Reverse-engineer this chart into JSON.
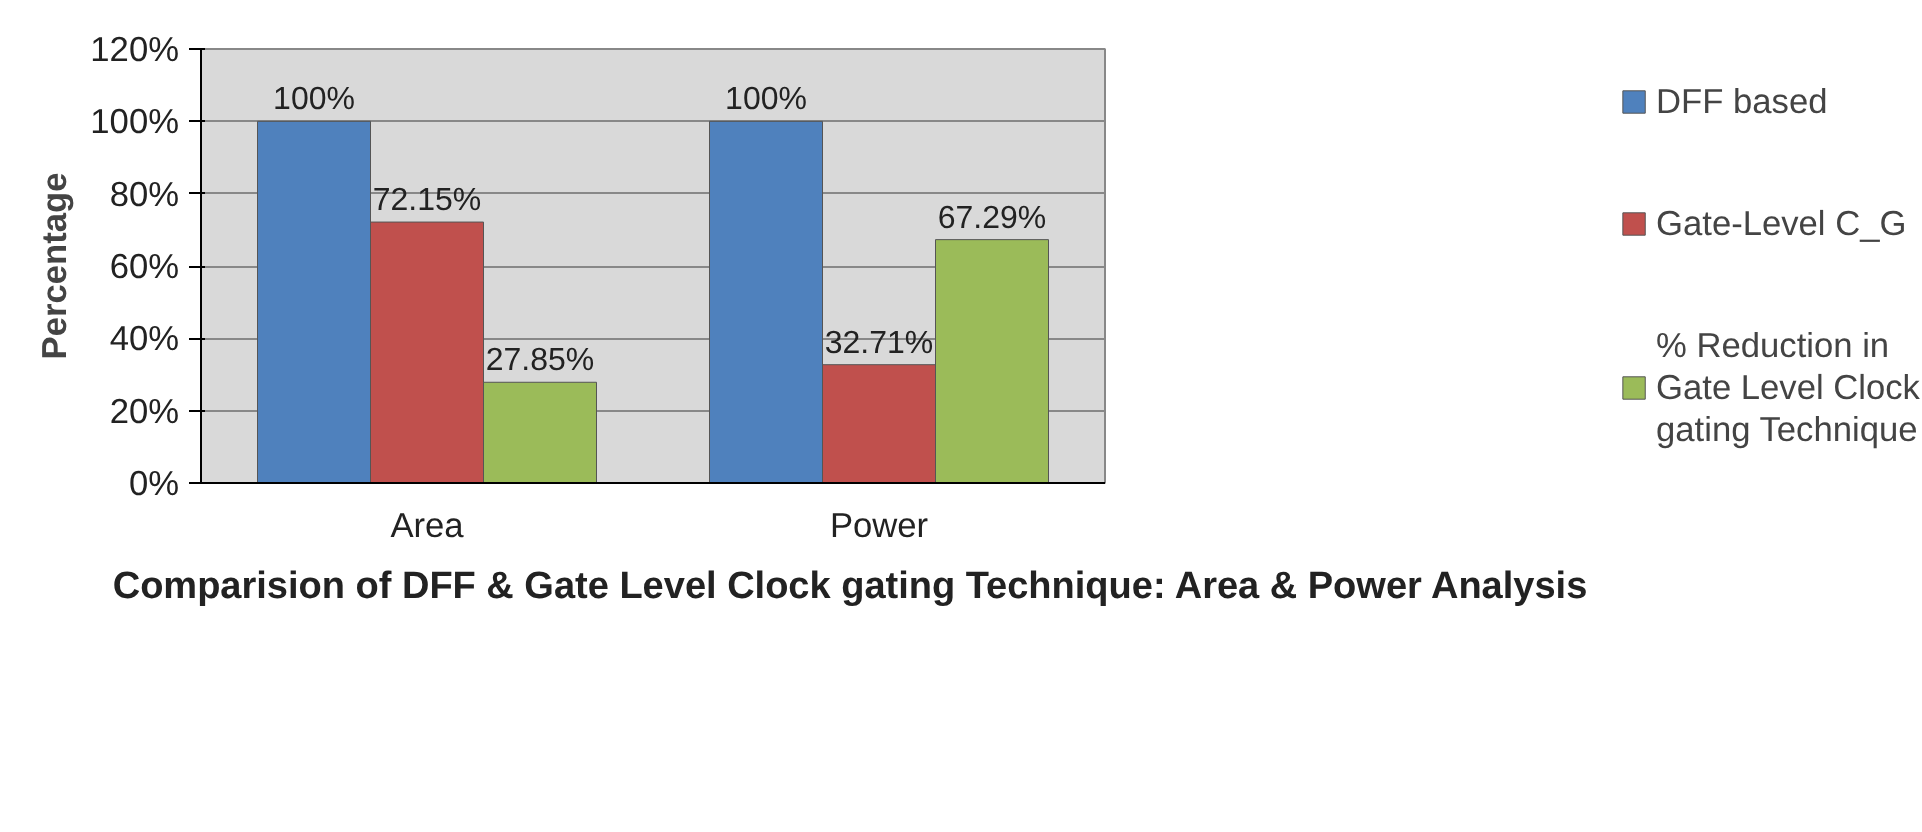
{
  "chart_data": {
    "type": "bar",
    "title": "Comparision of DFF & Gate Level Clock gating Technique: Area & Power Analysis",
    "ylabel": "Percentage",
    "categories": [
      "Area",
      "Power"
    ],
    "series": [
      {
        "name": "DFF based",
        "color": "#4f81bd",
        "values": [
          100,
          100
        ],
        "value_labels": [
          "100%",
          "100%"
        ]
      },
      {
        "name": "Gate-Level C_G",
        "color": "#c0504d",
        "values": [
          72.15,
          32.71
        ],
        "value_labels": [
          "72.15%",
          "32.71%"
        ]
      },
      {
        "name": "% Reduction in Gate Level Clock gating Technique",
        "color": "#9bbb59",
        "values": [
          27.85,
          67.29
        ],
        "value_labels": [
          "27.85%",
          "67.29%"
        ]
      }
    ],
    "ylim": [
      0,
      120
    ],
    "yticks": [
      {
        "value": 0,
        "label": "0%"
      },
      {
        "value": 20,
        "label": "20%"
      },
      {
        "value": 40,
        "label": "40%"
      },
      {
        "value": 60,
        "label": "60%"
      },
      {
        "value": 80,
        "label": "80%"
      },
      {
        "value": 100,
        "label": "100%"
      },
      {
        "value": 120,
        "label": "120%"
      }
    ],
    "grid": "y",
    "legend": "right"
  }
}
